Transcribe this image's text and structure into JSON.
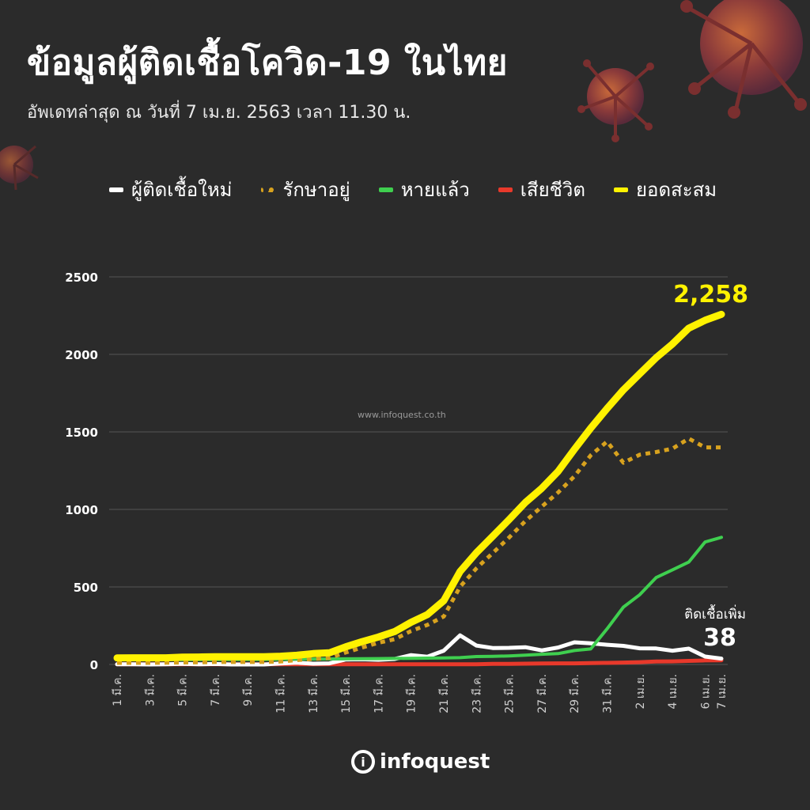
{
  "header": {
    "title": "ข้อมูลผู้ติดเชื้อโควิด-19 ในไทย",
    "subtitle": "อัพเดทล่าสุด ณ วันที่  7 เม.ย. 2563 เวลา 11.30 น."
  },
  "watermark": "www.infoquest.co.th",
  "logo": {
    "mark": "i",
    "text": "infoquest"
  },
  "colors": {
    "background": "#2b2b2b",
    "new_cases": "#ffffff",
    "active": "#d8a21e",
    "recovered": "#3fcf4f",
    "deaths": "#e8392b",
    "cumulative": "#fff200"
  },
  "chart_data": {
    "type": "line",
    "x": [
      "1 มี.ค.",
      "2 มี.ค.",
      "3 มี.ค.",
      "4 มี.ค.",
      "5 มี.ค.",
      "6 มี.ค.",
      "7 มี.ค.",
      "8 มี.ค.",
      "9 มี.ค.",
      "10 มี.ค.",
      "11 มี.ค.",
      "12 มี.ค.",
      "13 มี.ค.",
      "14 มี.ค.",
      "15 มี.ค.",
      "16 มี.ค.",
      "17 มี.ค.",
      "18 มี.ค.",
      "19 มี.ค.",
      "20 มี.ค.",
      "21 มี.ค.",
      "22 มี.ค.",
      "23 มี.ค.",
      "24 มี.ค.",
      "25 มี.ค.",
      "26 มี.ค.",
      "27 มี.ค.",
      "28 มี.ค.",
      "29 มี.ค.",
      "30 มี.ค.",
      "31 มี.ค.",
      "1 เม.ย.",
      "2 เม.ย.",
      "3 เม.ย.",
      "4 เม.ย.",
      "5 เม.ย.",
      "6 เม.ย.",
      "7 เม.ย."
    ],
    "x_tick_labels": [
      "1 มี.ค.",
      "3 มี.ค.",
      "5 มี.ค.",
      "7 มี.ค.",
      "9 มี.ค.",
      "11 มี.ค.",
      "13 มี.ค.",
      "15 มี.ค.",
      "17 มี.ค.",
      "19 มี.ค.",
      "21 มี.ค.",
      "23 มี.ค.",
      "25 มี.ค.",
      "27 มี.ค.",
      "29 มี.ค.",
      "31 มี.ค.",
      "2 เม.ย.",
      "4 เม.ย.",
      "6 เม.ย.",
      "7 เม.ย."
    ],
    "y_ticks": [
      0,
      500,
      1000,
      1500,
      2000,
      2500
    ],
    "ylim": [
      0,
      2500
    ],
    "grid": true,
    "legend_position": "top",
    "series": [
      {
        "name": "ผู้ติดเชื้อใหม่",
        "key": "new_cases",
        "style": "solid",
        "values": [
          1,
          1,
          0,
          1,
          4,
          1,
          3,
          0,
          0,
          0,
          6,
          11,
          5,
          7,
          32,
          33,
          30,
          35,
          60,
          50,
          89,
          188,
          122,
          106,
          107,
          111,
          91,
          109,
          143,
          136,
          127,
          120,
          104,
          103,
          89,
          102,
          51,
          38
        ]
      },
      {
        "name": "รักษาอยู่",
        "key": "active",
        "style": "dotted",
        "values": [
          10,
          10,
          10,
          11,
          13,
          14,
          16,
          16,
          16,
          16,
          19,
          28,
          35,
          42,
          77,
          109,
          140,
          163,
          216,
          255,
          309,
          501,
          620,
          719,
          819,
          925,
          1018,
          1109,
          1214,
          1349,
          1438,
          1301,
          1353,
          1370,
          1392,
          1457,
          1400,
          1400
        ]
      },
      {
        "name": "หายแล้ว",
        "key": "recovered",
        "style": "solid",
        "values": [
          31,
          31,
          31,
          31,
          31,
          31,
          31,
          31,
          32,
          32,
          33,
          34,
          34,
          35,
          36,
          37,
          38,
          39,
          40,
          41,
          42,
          44,
          51,
          52,
          55,
          60,
          66,
          70,
          90,
          100,
          230,
          370,
          450,
          560,
          610,
          660,
          790,
          820
        ]
      },
      {
        "name": "เสียชีวิต",
        "key": "deaths",
        "style": "solid",
        "values": [
          1,
          1,
          1,
          1,
          1,
          1,
          1,
          1,
          1,
          1,
          1,
          1,
          1,
          1,
          1,
          1,
          1,
          1,
          1,
          1,
          1,
          1,
          1,
          4,
          4,
          5,
          6,
          7,
          7,
          9,
          10,
          12,
          15,
          19,
          20,
          23,
          26,
          27
        ]
      },
      {
        "name": "ยอดสะสม",
        "key": "cumulative",
        "style": "solid",
        "values": [
          42,
          43,
          43,
          43,
          47,
          48,
          50,
          50,
          50,
          50,
          53,
          59,
          70,
          75,
          114,
          147,
          177,
          212,
          272,
          322,
          411,
          599,
          721,
          827,
          934,
          1045,
          1136,
          1245,
          1388,
          1524,
          1651,
          1771,
          1875,
          1978,
          2067,
          2169,
          2220,
          2258
        ]
      }
    ],
    "annotations": [
      {
        "text": "2,258",
        "series": "cumulative",
        "index": 37
      },
      {
        "label": "ติดเชื้อเพิ่ม",
        "text": "38",
        "series": "new_cases",
        "index": 37
      }
    ]
  }
}
